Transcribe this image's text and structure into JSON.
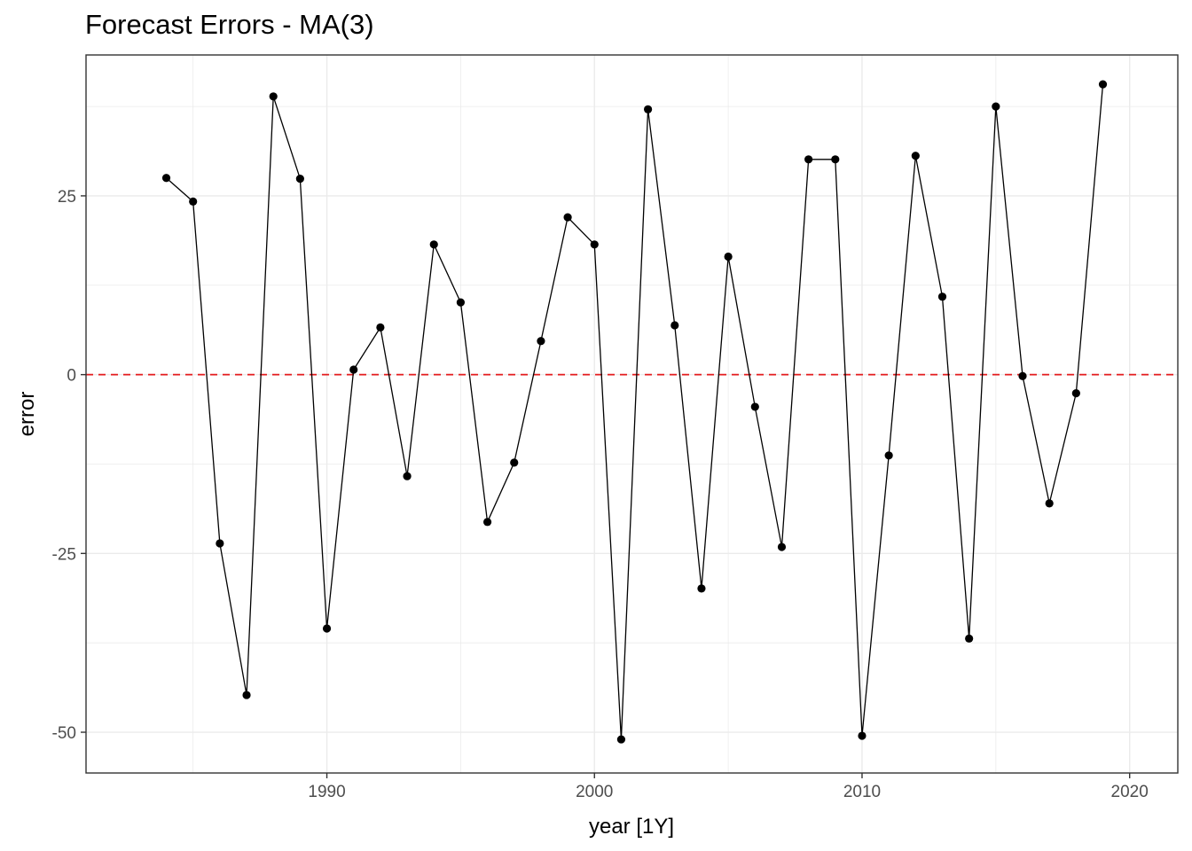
{
  "chart_data": {
    "type": "line",
    "title": "Forecast Errors - MA(3)",
    "xlabel": "year [1Y]",
    "ylabel": "error",
    "xlim": [
      1981.0,
      2021.8
    ],
    "ylim": [
      -55.7,
      44.7
    ],
    "x_ticks": [
      1990,
      2000,
      2010,
      2020
    ],
    "y_ticks": [
      -50,
      -25,
      0,
      25
    ],
    "grid": true,
    "reference_line": {
      "y": 0,
      "style": "dashed",
      "color": "#e31a1c"
    },
    "series": [
      {
        "x": [
          1984,
          1985,
          1986,
          1987,
          1988,
          1989,
          1990,
          1991,
          1992,
          1993,
          1994,
          1995,
          1996,
          1997,
          1998,
          1999,
          2000,
          2001,
          2002,
          2003,
          2004,
          2005,
          2006,
          2007,
          2008,
          2009,
          2010,
          2011,
          2012,
          2013,
          2014,
          2015,
          2016,
          2017,
          2018,
          2019
        ],
        "y": [
          27.5,
          24.2,
          -23.6,
          -44.8,
          38.9,
          27.4,
          -35.5,
          0.7,
          6.6,
          -14.2,
          18.2,
          10.1,
          -20.6,
          -12.3,
          4.7,
          22.0,
          18.2,
          -51.0,
          37.1,
          6.9,
          -29.9,
          16.5,
          -4.5,
          -24.1,
          30.1,
          30.1,
          -50.5,
          -11.3,
          30.6,
          10.9,
          -36.9,
          37.5,
          -0.2,
          -18.0,
          -2.6,
          40.6
        ]
      }
    ],
    "colors": {
      "line": "#000000",
      "points": "#000000",
      "grid": "#ebebeb",
      "panel_border": "#333333",
      "zero_line": "#e31a1c"
    }
  }
}
